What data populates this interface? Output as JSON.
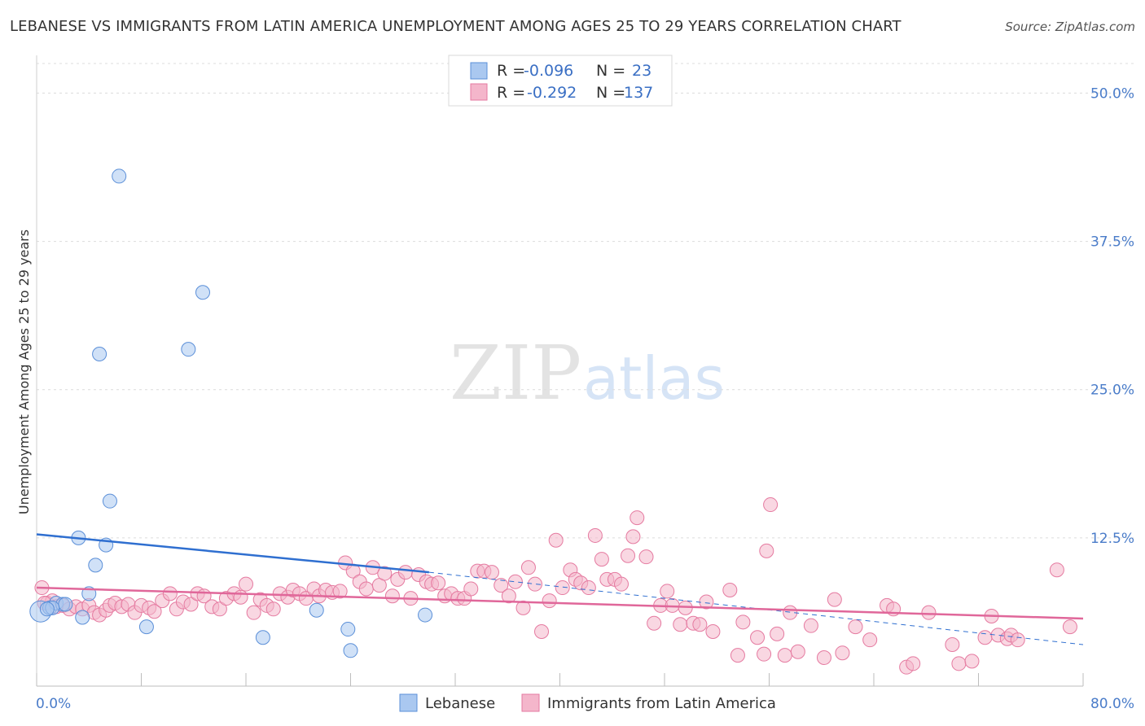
{
  "title": "LEBANESE VS IMMIGRANTS FROM LATIN AMERICA UNEMPLOYMENT AMONG AGES 25 TO 29 YEARS CORRELATION CHART",
  "source": "Source: ZipAtlas.com",
  "watermark": {
    "zip": "ZIP",
    "atlas": "atlas"
  },
  "colors": {
    "blue_fill": "#aac8f0",
    "blue_stroke": "#5b8fd8",
    "blue_line": "#2f6fd0",
    "pink_fill": "#f4b6cb",
    "pink_stroke": "#e57aa0",
    "pink_line": "#e0679a",
    "tick_text": "#4a7cc9"
  },
  "legend": {
    "rows": [
      {
        "r_label": "R =",
        "r_value": "-0.096",
        "n_label": "N =",
        "n_value": "23"
      },
      {
        "r_label": "R =",
        "r_value": "-0.292",
        "n_label": "N =",
        "n_value": "137"
      }
    ]
  },
  "chart_data": {
    "type": "scatter",
    "title": "LEBANESE VS IMMIGRANTS FROM LATIN AMERICA UNEMPLOYMENT AMONG AGES 25 TO 29 YEARS CORRELATION CHART",
    "xlabel": "",
    "ylabel": "Unemployment Among Ages 25 to 29 years",
    "xlim": [
      0,
      80
    ],
    "ylim": [
      0,
      52.5
    ],
    "x_tick_labels": [
      "0.0%",
      "80.0%"
    ],
    "y_ticks": [
      12.5,
      25.0,
      37.5,
      50.0
    ],
    "y_tick_labels": [
      "12.5%",
      "25.0%",
      "37.5%",
      "50.0%"
    ],
    "grid": "horizontal dashed",
    "legend_position": "top-center",
    "series": [
      {
        "name": "Lebanese",
        "color": "#aac8f0",
        "trend": {
          "x": [
            0,
            30
          ],
          "y": [
            12.8,
            9.6
          ],
          "dashed_to": [
            80,
            3.5
          ]
        },
        "points": [
          [
            0.3,
            6.3
          ],
          [
            1.0,
            6.6
          ],
          [
            1.5,
            7.0
          ],
          [
            2.0,
            6.9
          ],
          [
            2.2,
            6.9
          ],
          [
            3.2,
            12.5
          ],
          [
            3.5,
            5.8
          ],
          [
            4.0,
            7.8
          ],
          [
            4.5,
            10.2
          ],
          [
            5.3,
            11.9
          ],
          [
            5.6,
            15.6
          ],
          [
            6.3,
            43.0
          ],
          [
            4.8,
            28.0
          ],
          [
            8.4,
            5.0
          ],
          [
            11.6,
            28.4
          ],
          [
            12.7,
            33.2
          ],
          [
            17.3,
            4.1
          ],
          [
            21.4,
            6.4
          ],
          [
            23.8,
            4.8
          ],
          [
            24.0,
            3.0
          ],
          [
            29.7,
            6.0
          ],
          [
            1.2,
            6.6
          ],
          [
            0.8,
            6.5
          ]
        ]
      },
      {
        "name": "Immigrants from Latin America",
        "color": "#f4b6cb",
        "trend": {
          "x": [
            0,
            80
          ],
          "y": [
            8.3,
            5.7
          ]
        },
        "points": [
          [
            0.4,
            8.3
          ],
          [
            0.8,
            7.0
          ],
          [
            1.2,
            7.2
          ],
          [
            1.5,
            6.7
          ],
          [
            2.0,
            6.8
          ],
          [
            2.5,
            6.5
          ],
          [
            3.0,
            6.7
          ],
          [
            3.5,
            6.5
          ],
          [
            4.0,
            6.8
          ],
          [
            4.4,
            6.2
          ],
          [
            4.8,
            6.0
          ],
          [
            5.3,
            6.4
          ],
          [
            5.6,
            6.8
          ],
          [
            6.0,
            7.0
          ],
          [
            6.5,
            6.7
          ],
          [
            7.0,
            6.9
          ],
          [
            7.5,
            6.2
          ],
          [
            8.0,
            6.8
          ],
          [
            8.6,
            6.6
          ],
          [
            9.0,
            6.3
          ],
          [
            9.6,
            7.2
          ],
          [
            10.2,
            7.8
          ],
          [
            10.7,
            6.5
          ],
          [
            11.2,
            7.1
          ],
          [
            11.8,
            6.9
          ],
          [
            12.3,
            7.8
          ],
          [
            12.8,
            7.6
          ],
          [
            13.4,
            6.7
          ],
          [
            14.0,
            6.5
          ],
          [
            14.5,
            7.4
          ],
          [
            15.1,
            7.8
          ],
          [
            15.6,
            7.5
          ],
          [
            16.0,
            8.6
          ],
          [
            16.6,
            6.2
          ],
          [
            17.1,
            7.3
          ],
          [
            17.6,
            6.8
          ],
          [
            18.1,
            6.5
          ],
          [
            18.6,
            7.8
          ],
          [
            19.2,
            7.5
          ],
          [
            19.6,
            8.1
          ],
          [
            20.1,
            7.8
          ],
          [
            20.6,
            7.4
          ],
          [
            21.2,
            8.2
          ],
          [
            21.6,
            7.6
          ],
          [
            22.1,
            8.1
          ],
          [
            22.6,
            7.9
          ],
          [
            23.2,
            8.0
          ],
          [
            23.6,
            10.4
          ],
          [
            24.2,
            9.7
          ],
          [
            24.7,
            8.8
          ],
          [
            25.2,
            8.2
          ],
          [
            25.7,
            10.0
          ],
          [
            26.2,
            8.5
          ],
          [
            26.6,
            9.5
          ],
          [
            27.2,
            7.6
          ],
          [
            27.6,
            9.0
          ],
          [
            28.2,
            9.6
          ],
          [
            28.6,
            7.4
          ],
          [
            29.2,
            9.4
          ],
          [
            29.8,
            8.8
          ],
          [
            30.2,
            8.6
          ],
          [
            30.7,
            8.7
          ],
          [
            31.2,
            7.6
          ],
          [
            31.7,
            7.8
          ],
          [
            32.2,
            7.4
          ],
          [
            32.7,
            7.4
          ],
          [
            33.2,
            8.2
          ],
          [
            33.7,
            9.7
          ],
          [
            34.2,
            9.7
          ],
          [
            34.8,
            9.6
          ],
          [
            35.5,
            8.5
          ],
          [
            36.1,
            7.6
          ],
          [
            36.6,
            8.8
          ],
          [
            37.2,
            6.6
          ],
          [
            37.6,
            10.0
          ],
          [
            38.1,
            8.6
          ],
          [
            38.6,
            4.6
          ],
          [
            39.2,
            7.2
          ],
          [
            39.7,
            12.3
          ],
          [
            40.2,
            8.3
          ],
          [
            40.8,
            9.8
          ],
          [
            41.2,
            9.0
          ],
          [
            41.6,
            8.7
          ],
          [
            42.2,
            8.3
          ],
          [
            42.7,
            12.7
          ],
          [
            43.2,
            10.7
          ],
          [
            43.6,
            9.0
          ],
          [
            44.2,
            9.0
          ],
          [
            44.7,
            8.6
          ],
          [
            45.2,
            11.0
          ],
          [
            45.6,
            12.6
          ],
          [
            45.9,
            14.2
          ],
          [
            46.6,
            10.9
          ],
          [
            47.2,
            5.3
          ],
          [
            47.7,
            6.8
          ],
          [
            48.2,
            8.0
          ],
          [
            48.6,
            6.8
          ],
          [
            49.2,
            5.2
          ],
          [
            49.6,
            6.6
          ],
          [
            50.2,
            5.3
          ],
          [
            50.7,
            5.2
          ],
          [
            51.2,
            7.1
          ],
          [
            51.7,
            4.6
          ],
          [
            53.0,
            8.1
          ],
          [
            54.0,
            5.4
          ],
          [
            53.6,
            2.6
          ],
          [
            55.1,
            4.1
          ],
          [
            55.6,
            2.7
          ],
          [
            55.8,
            11.4
          ],
          [
            56.1,
            15.3
          ],
          [
            56.6,
            4.4
          ],
          [
            57.2,
            2.6
          ],
          [
            57.6,
            6.2
          ],
          [
            58.2,
            2.9
          ],
          [
            59.2,
            5.1
          ],
          [
            60.2,
            2.4
          ],
          [
            61.0,
            7.3
          ],
          [
            61.6,
            2.8
          ],
          [
            62.6,
            5.0
          ],
          [
            63.7,
            3.9
          ],
          [
            65.0,
            6.8
          ],
          [
            65.5,
            6.5
          ],
          [
            66.5,
            1.6
          ],
          [
            67.0,
            1.9
          ],
          [
            68.2,
            6.2
          ],
          [
            70.0,
            3.5
          ],
          [
            70.5,
            1.9
          ],
          [
            71.5,
            2.1
          ],
          [
            72.5,
            4.1
          ],
          [
            73.0,
            5.9
          ],
          [
            73.5,
            4.3
          ],
          [
            74.2,
            4.0
          ],
          [
            74.5,
            4.3
          ],
          [
            75.0,
            3.9
          ],
          [
            78.0,
            9.8
          ],
          [
            79.0,
            5.0
          ],
          [
            0.6,
            7.0
          ]
        ]
      }
    ]
  },
  "bottom_legend": [
    {
      "label": "Lebanese"
    },
    {
      "label": "Immigrants from Latin America"
    }
  ]
}
